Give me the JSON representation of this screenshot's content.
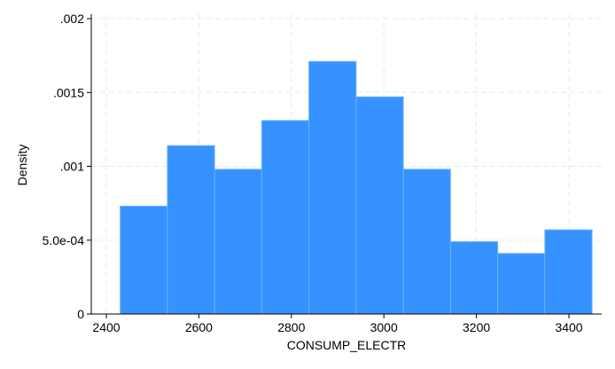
{
  "chart_data": {
    "type": "bar",
    "subtype": "histogram",
    "xlabel": "CONSUMP_ELECTR",
    "ylabel": "Density",
    "xlim": [
      2400,
      3450
    ],
    "ylim": [
      0,
      0.002
    ],
    "x_ticks": [
      2400,
      2600,
      2800,
      3000,
      3200,
      3400
    ],
    "x_tick_labels": [
      "2400",
      "2600",
      "2800",
      "3000",
      "3200",
      "3400"
    ],
    "y_ticks": [
      0,
      0.0005,
      0.001,
      0.0015,
      0.002
    ],
    "y_tick_labels": [
      "0",
      "5.0e-04",
      ".001",
      ".0015",
      ".002"
    ],
    "bins": [
      {
        "start": 2430,
        "end": 2532,
        "density": 0.00073
      },
      {
        "start": 2532,
        "end": 2634,
        "density": 0.00114
      },
      {
        "start": 2634,
        "end": 2736,
        "density": 0.00098
      },
      {
        "start": 2736,
        "end": 2838,
        "density": 0.00131
      },
      {
        "start": 2838,
        "end": 2940,
        "density": 0.00171
      },
      {
        "start": 2940,
        "end": 3042,
        "density": 0.00147
      },
      {
        "start": 3042,
        "end": 3144,
        "density": 0.00098
      },
      {
        "start": 3144,
        "end": 3246,
        "density": 0.00049
      },
      {
        "start": 3246,
        "end": 3348,
        "density": 0.00041
      },
      {
        "start": 3348,
        "end": 3450,
        "density": 0.00057
      }
    ],
    "grid": true,
    "bar_color": "#3592ff",
    "bar_edge_color": "#6fb2ff"
  }
}
